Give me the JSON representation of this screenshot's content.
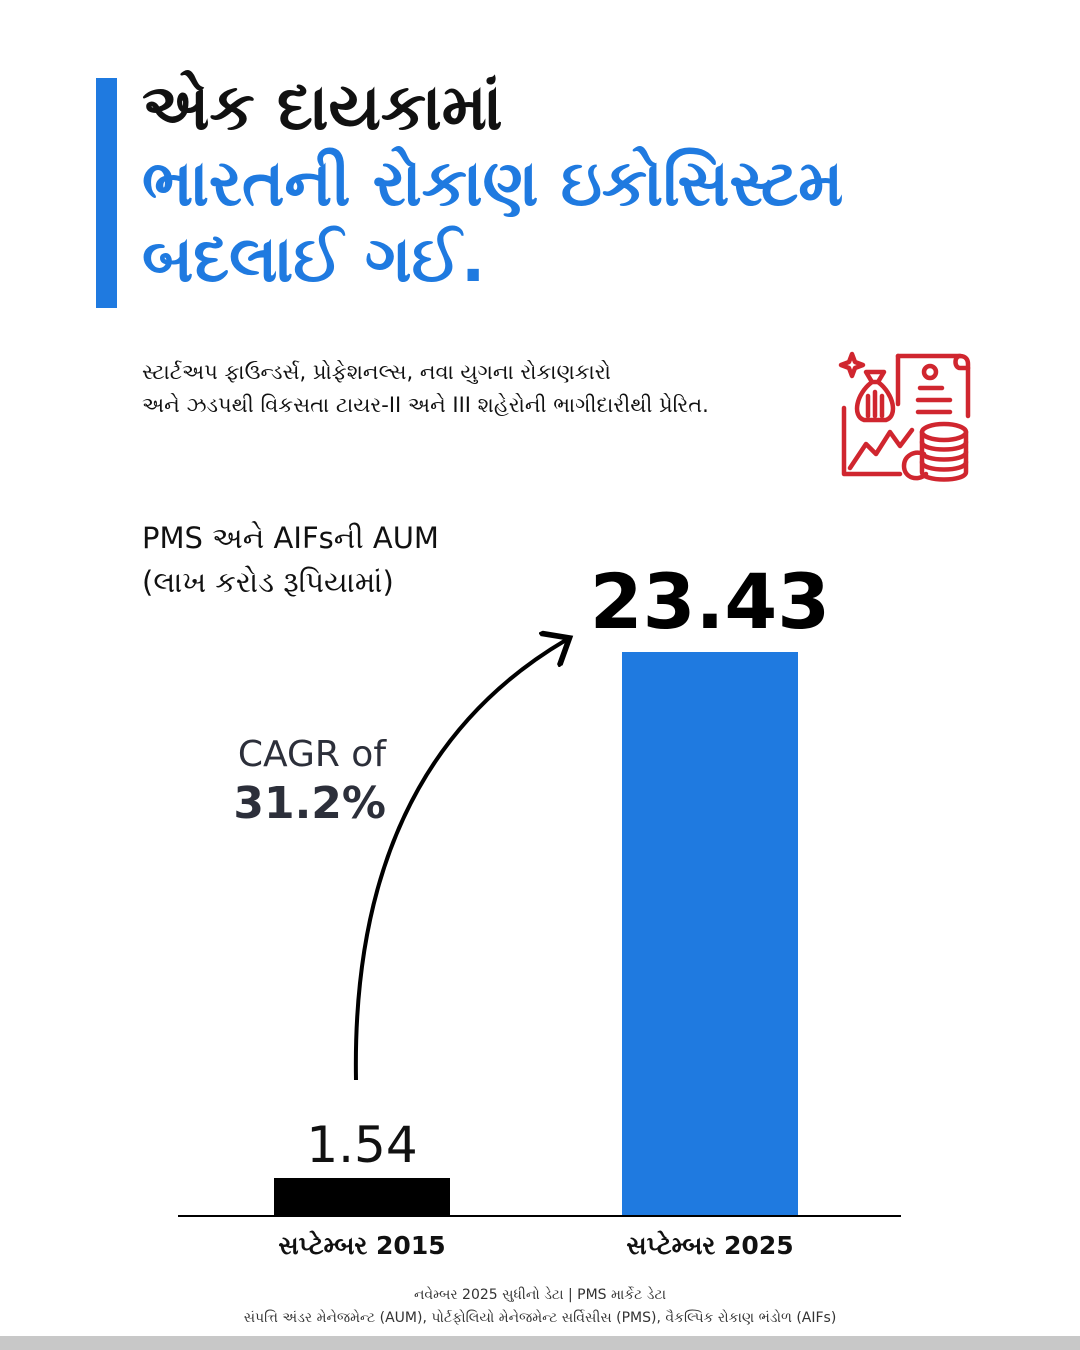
{
  "headline": {
    "line1": "એક દાયકામાં",
    "line2": "ભારતની રોકાણ ઇકોસિસ્ટમ",
    "line3": "બદલાઈ ગઈ."
  },
  "subtitle": {
    "line1": "સ્ટાર્ટઅપ ફાઉન્ડર્સ, પ્રોફેશનલ્સ, નવા યુગના રોકાણકારો",
    "line2": "અને ઝડપથી વિકસતા ટાયર-II અને III શહેરોની ભાગીદારીથી પ્રેરિત."
  },
  "icon": {
    "name": "finance-growth-icon",
    "color": "#d0262f"
  },
  "colors": {
    "accent": "#1f7ae0",
    "bar_2015": "#000000",
    "bar_2025": "#1f7ae0"
  },
  "chart_data": {
    "type": "bar",
    "title": "PMS અને AIFsની AUM",
    "subtitle": "(લાખ કરોડ રૂપિયામાં)",
    "categories": [
      "સપ્ટેમ્બર 2015",
      "સપ્ટેમ્બર 2025"
    ],
    "values": [
      1.54,
      23.43
    ],
    "value_labels": [
      "1.54",
      "23.43"
    ],
    "annotation": {
      "text": "CAGR of",
      "value": "31.2%"
    },
    "grid": false,
    "legend": "none"
  },
  "footer": {
    "line1": "નવેમ્બર 2025 સુધીનો ડેટા | PMS માર્કેટ ડેટા",
    "line2": "સંપત્તિ અંડર મેનેજમેન્ટ (AUM), પોર્ટફોલિયો મેનેજમેન્ટ સર્વિસીસ (PMS), વૈકલ્પિક રોકાણ ભંડોળ (AIFs)"
  }
}
